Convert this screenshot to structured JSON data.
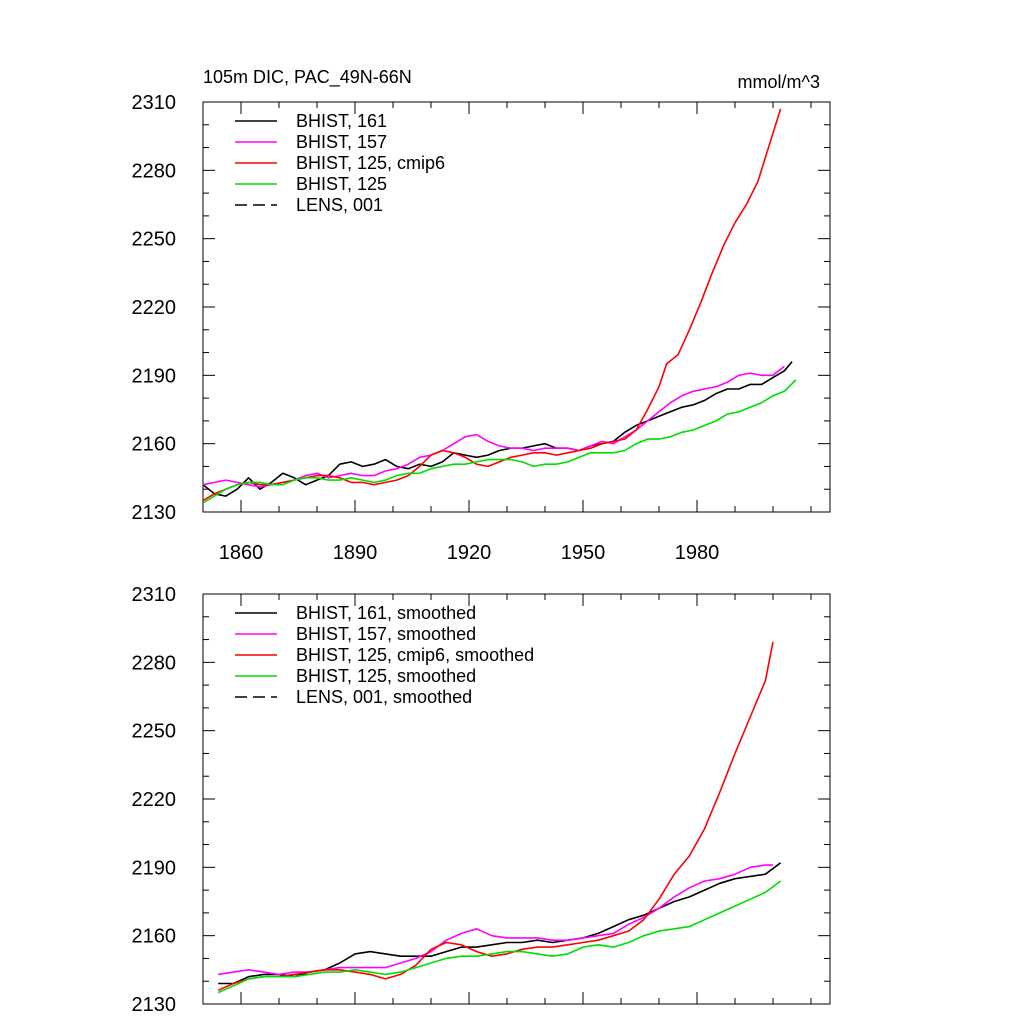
{
  "chart_data": [
    {
      "type": "line",
      "title": "105m DIC, PAC_49N-66N",
      "units": "mmol/m^3",
      "xlim": [
        1850,
        2015
      ],
      "ylim": [
        2130,
        2310
      ],
      "xticks": [
        1860,
        1890,
        1920,
        1950,
        1980
      ],
      "yticks": [
        2130,
        2160,
        2190,
        2220,
        2250,
        2280,
        2310
      ],
      "legend_position": "top-left",
      "series": [
        {
          "name": "BHIST, 161",
          "color": "#000000",
          "dash": "solid",
          "x": [
            1850,
            1853,
            1856,
            1859,
            1862,
            1865,
            1868,
            1871,
            1874,
            1877,
            1880,
            1883,
            1886,
            1889,
            1892,
            1895,
            1898,
            1901,
            1904,
            1907,
            1910,
            1913,
            1916,
            1919,
            1922,
            1925,
            1928,
            1931,
            1934,
            1937,
            1940,
            1943,
            1946,
            1949,
            1952,
            1955,
            1958,
            1961,
            1964,
            1967,
            1970,
            1973,
            1976,
            1979,
            1982,
            1985,
            1988,
            1991,
            1994,
            1997,
            2000,
            2003,
            2005
          ],
          "y": [
            2142,
            2138,
            2137,
            2140,
            2145,
            2140,
            2143,
            2147,
            2145,
            2142,
            2144,
            2146,
            2151,
            2152,
            2150,
            2151,
            2153,
            2150,
            2149,
            2151,
            2150,
            2152,
            2156,
            2155,
            2154,
            2155,
            2157,
            2158,
            2158,
            2159,
            2160,
            2158,
            2158,
            2157,
            2159,
            2160,
            2161,
            2165,
            2168,
            2170,
            2172,
            2174,
            2176,
            2177,
            2179,
            2182,
            2184,
            2184,
            2186,
            2186,
            2189,
            2192,
            2196
          ]
        },
        {
          "name": "BHIST, 157",
          "color": "#ff00ff",
          "dash": "solid",
          "x": [
            1850,
            1853,
            1856,
            1859,
            1862,
            1865,
            1868,
            1871,
            1874,
            1877,
            1880,
            1883,
            1886,
            1889,
            1892,
            1895,
            1898,
            1901,
            1904,
            1907,
            1910,
            1913,
            1916,
            1919,
            1922,
            1925,
            1928,
            1931,
            1934,
            1937,
            1940,
            1943,
            1946,
            1949,
            1952,
            1955,
            1958,
            1961,
            1964,
            1967,
            1970,
            1973,
            1976,
            1979,
            1982,
            1985,
            1988,
            1991,
            1994,
            1997,
            2000,
            2003
          ],
          "y": [
            2142,
            2143,
            2144,
            2143,
            2142,
            2141,
            2142,
            2143,
            2144,
            2146,
            2147,
            2145,
            2146,
            2147,
            2146,
            2146,
            2148,
            2149,
            2151,
            2154,
            2155,
            2157,
            2160,
            2163,
            2164,
            2161,
            2159,
            2158,
            2158,
            2157,
            2158,
            2158,
            2158,
            2157,
            2159,
            2161,
            2160,
            2163,
            2166,
            2170,
            2174,
            2178,
            2181,
            2183,
            2184,
            2185,
            2187,
            2190,
            2191,
            2190,
            2190,
            2194
          ]
        },
        {
          "name": "BHIST, 125, cmip6",
          "color": "#ff0000",
          "dash": "solid",
          "x": [
            1850,
            1853,
            1856,
            1859,
            1862,
            1865,
            1868,
            1871,
            1874,
            1877,
            1880,
            1883,
            1886,
            1889,
            1892,
            1895,
            1898,
            1901,
            1904,
            1907,
            1910,
            1913,
            1916,
            1919,
            1922,
            1925,
            1928,
            1931,
            1934,
            1937,
            1940,
            1943,
            1946,
            1949,
            1952,
            1955,
            1958,
            1961,
            1964,
            1967,
            1970,
            1972,
            1975,
            1978,
            1981,
            1984,
            1987,
            1990,
            1993,
            1996,
            1999,
            2002
          ],
          "y": [
            2135,
            2138,
            2140,
            2142,
            2143,
            2142,
            2142,
            2143,
            2144,
            2145,
            2146,
            2146,
            2145,
            2143,
            2143,
            2142,
            2143,
            2144,
            2146,
            2150,
            2155,
            2157,
            2156,
            2154,
            2151,
            2150,
            2152,
            2154,
            2155,
            2156,
            2156,
            2155,
            2156,
            2157,
            2158,
            2160,
            2161,
            2162,
            2166,
            2175,
            2185,
            2195,
            2199,
            2210,
            2222,
            2235,
            2247,
            2257,
            2265,
            2275,
            2291,
            2307
          ]
        },
        {
          "name": "BHIST, 125",
          "color": "#00dd00",
          "dash": "solid",
          "x": [
            1850,
            1853,
            1856,
            1859,
            1862,
            1865,
            1868,
            1871,
            1874,
            1877,
            1880,
            1883,
            1886,
            1889,
            1892,
            1895,
            1898,
            1901,
            1904,
            1907,
            1910,
            1913,
            1916,
            1919,
            1922,
            1925,
            1928,
            1931,
            1934,
            1937,
            1940,
            1943,
            1946,
            1949,
            1952,
            1955,
            1958,
            1961,
            1964,
            1967,
            1970,
            1973,
            1976,
            1979,
            1982,
            1985,
            1988,
            1991,
            1994,
            1997,
            2000,
            2003,
            2006
          ],
          "y": [
            2134,
            2137,
            2140,
            2142,
            2143,
            2143,
            2142,
            2142,
            2144,
            2145,
            2145,
            2144,
            2144,
            2145,
            2144,
            2143,
            2144,
            2146,
            2147,
            2147,
            2149,
            2150,
            2151,
            2151,
            2152,
            2153,
            2153,
            2153,
            2152,
            2150,
            2151,
            2151,
            2152,
            2154,
            2156,
            2156,
            2156,
            2157,
            2160,
            2162,
            2162,
            2163,
            2165,
            2166,
            2168,
            2170,
            2173,
            2174,
            2176,
            2178,
            2181,
            2183,
            2188
          ]
        }
      ]
    },
    {
      "type": "line",
      "xlim": [
        1850,
        2015
      ],
      "ylim": [
        2130,
        2310
      ],
      "xticks": [
        1860,
        1890,
        1920,
        1950,
        1980
      ],
      "yticks": [
        2130,
        2160,
        2190,
        2220,
        2250,
        2280,
        2310
      ],
      "legend_position": "top-left",
      "series": [
        {
          "name": "BHIST, 161, smoothed",
          "color": "#000000",
          "dash": "solid",
          "x": [
            1854,
            1858,
            1862,
            1866,
            1870,
            1874,
            1878,
            1882,
            1886,
            1890,
            1894,
            1898,
            1902,
            1906,
            1910,
            1914,
            1918,
            1922,
            1926,
            1930,
            1934,
            1938,
            1942,
            1946,
            1950,
            1954,
            1958,
            1962,
            1966,
            1970,
            1974,
            1978,
            1982,
            1986,
            1990,
            1994,
            1998,
            2002
          ],
          "y": [
            2139,
            2139,
            2142,
            2143,
            2143,
            2142,
            2144,
            2145,
            2148,
            2152,
            2153,
            2152,
            2151,
            2151,
            2151,
            2153,
            2155,
            2155,
            2156,
            2157,
            2157,
            2158,
            2157,
            2158,
            2159,
            2161,
            2164,
            2167,
            2169,
            2172,
            2175,
            2177,
            2180,
            2183,
            2185,
            2186,
            2187,
            2192
          ]
        },
        {
          "name": "BHIST, 157, smoothed",
          "color": "#ff00ff",
          "dash": "solid",
          "x": [
            1854,
            1858,
            1862,
            1866,
            1870,
            1874,
            1878,
            1882,
            1886,
            1890,
            1894,
            1898,
            1902,
            1906,
            1910,
            1914,
            1918,
            1922,
            1926,
            1930,
            1934,
            1938,
            1942,
            1946,
            1950,
            1954,
            1958,
            1962,
            1966,
            1970,
            1974,
            1978,
            1982,
            1986,
            1990,
            1994,
            1998,
            2000
          ],
          "y": [
            2143,
            2144,
            2145,
            2144,
            2143,
            2144,
            2144,
            2145,
            2146,
            2146,
            2146,
            2146,
            2148,
            2150,
            2153,
            2158,
            2161,
            2163,
            2160,
            2159,
            2159,
            2159,
            2158,
            2158,
            2159,
            2160,
            2161,
            2165,
            2168,
            2172,
            2177,
            2181,
            2184,
            2185,
            2187,
            2190,
            2191,
            2191
          ]
        },
        {
          "name": "BHIST, 125, cmip6, smoothed",
          "color": "#ff0000",
          "dash": "solid",
          "x": [
            1854,
            1858,
            1862,
            1866,
            1870,
            1874,
            1878,
            1882,
            1886,
            1890,
            1894,
            1898,
            1902,
            1906,
            1910,
            1914,
            1918,
            1922,
            1926,
            1930,
            1934,
            1938,
            1942,
            1946,
            1950,
            1954,
            1958,
            1962,
            1966,
            1970,
            1974,
            1978,
            1982,
            1986,
            1990,
            1994,
            1998,
            2000
          ],
          "y": [
            2136,
            2139,
            2141,
            2142,
            2142,
            2143,
            2144,
            2145,
            2145,
            2144,
            2143,
            2141,
            2143,
            2147,
            2154,
            2157,
            2156,
            2153,
            2151,
            2152,
            2154,
            2155,
            2155,
            2156,
            2157,
            2158,
            2160,
            2162,
            2167,
            2176,
            2187,
            2195,
            2207,
            2223,
            2240,
            2256,
            2272,
            2289
          ]
        },
        {
          "name": "BHIST, 125, smoothed",
          "color": "#00dd00",
          "dash": "solid",
          "x": [
            1854,
            1858,
            1862,
            1866,
            1870,
            1874,
            1878,
            1882,
            1886,
            1890,
            1894,
            1898,
            1902,
            1906,
            1910,
            1914,
            1918,
            1922,
            1926,
            1930,
            1934,
            1938,
            1942,
            1946,
            1950,
            1954,
            1958,
            1962,
            1966,
            1970,
            1974,
            1978,
            1982,
            1986,
            1990,
            1994,
            1998,
            2002
          ],
          "y": [
            2135,
            2138,
            2141,
            2142,
            2142,
            2142,
            2143,
            2144,
            2144,
            2145,
            2144,
            2143,
            2144,
            2146,
            2148,
            2150,
            2151,
            2151,
            2152,
            2153,
            2153,
            2152,
            2151,
            2152,
            2155,
            2156,
            2155,
            2157,
            2160,
            2162,
            2163,
            2164,
            2167,
            2170,
            2173,
            2176,
            2179,
            2184
          ]
        }
      ]
    }
  ],
  "legends": [
    [
      {
        "label": "BHIST, 161",
        "color": "#000000",
        "dash": "solid"
      },
      {
        "label": "BHIST, 157",
        "color": "#ff00ff",
        "dash": "solid"
      },
      {
        "label": "BHIST, 125, cmip6",
        "color": "#ff0000",
        "dash": "solid"
      },
      {
        "label": "BHIST, 125",
        "color": "#00dd00",
        "dash": "solid"
      },
      {
        "label": "LENS, 001",
        "color": "#000000",
        "dash": "dashed"
      }
    ],
    [
      {
        "label": "BHIST, 161, smoothed",
        "color": "#000000",
        "dash": "solid"
      },
      {
        "label": "BHIST, 157, smoothed",
        "color": "#ff00ff",
        "dash": "solid"
      },
      {
        "label": "BHIST, 125, cmip6, smoothed",
        "color": "#ff0000",
        "dash": "solid"
      },
      {
        "label": "BHIST, 125, smoothed",
        "color": "#00dd00",
        "dash": "solid"
      },
      {
        "label": "LENS, 001, smoothed",
        "color": "#000000",
        "dash": "dashed"
      }
    ]
  ]
}
